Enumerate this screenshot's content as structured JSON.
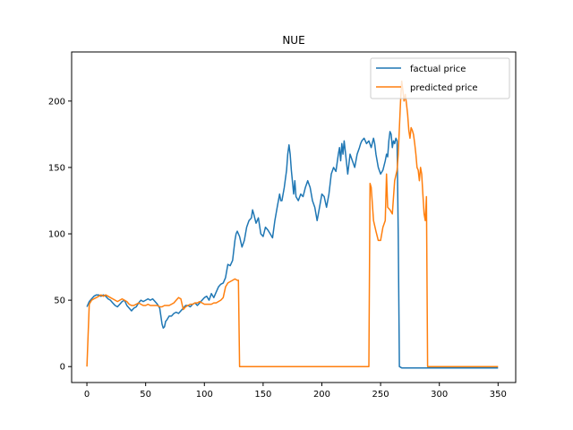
{
  "chart_data": {
    "type": "line",
    "title": "NUE",
    "xlabel": "",
    "ylabel": "",
    "xlim": [
      -13,
      365
    ],
    "ylim": [
      -12,
      237
    ],
    "xticks": [
      0,
      50,
      100,
      150,
      200,
      250,
      300,
      350
    ],
    "yticks": [
      0,
      50,
      100,
      150,
      200
    ],
    "grid": false,
    "legend_position": "top-right",
    "series": [
      {
        "name": "factual price",
        "color": "#1f77b4",
        "points": [
          [
            0,
            45
          ],
          [
            2,
            49
          ],
          [
            4,
            51
          ],
          [
            6,
            53
          ],
          [
            8,
            54
          ],
          [
            10,
            54
          ],
          [
            12,
            53
          ],
          [
            14,
            54
          ],
          [
            16,
            53
          ],
          [
            18,
            51
          ],
          [
            20,
            50
          ],
          [
            22,
            48
          ],
          [
            24,
            46
          ],
          [
            26,
            45
          ],
          [
            28,
            47
          ],
          [
            30,
            49
          ],
          [
            32,
            50
          ],
          [
            34,
            46
          ],
          [
            36,
            44
          ],
          [
            38,
            42
          ],
          [
            40,
            44
          ],
          [
            42,
            45
          ],
          [
            44,
            48
          ],
          [
            46,
            50
          ],
          [
            48,
            49
          ],
          [
            50,
            50
          ],
          [
            52,
            51
          ],
          [
            54,
            50
          ],
          [
            56,
            51
          ],
          [
            58,
            49
          ],
          [
            60,
            47
          ],
          [
            62,
            44
          ],
          [
            63,
            38
          ],
          [
            64,
            32
          ],
          [
            65,
            29
          ],
          [
            66,
            30
          ],
          [
            67,
            34
          ],
          [
            68,
            35
          ],
          [
            70,
            38
          ],
          [
            72,
            38
          ],
          [
            74,
            40
          ],
          [
            76,
            41
          ],
          [
            78,
            40
          ],
          [
            80,
            42
          ],
          [
            82,
            44
          ],
          [
            84,
            46
          ],
          [
            86,
            46
          ],
          [
            88,
            45
          ],
          [
            90,
            47
          ],
          [
            92,
            48
          ],
          [
            94,
            46
          ],
          [
            96,
            48
          ],
          [
            98,
            50
          ],
          [
            100,
            52
          ],
          [
            102,
            53
          ],
          [
            104,
            50
          ],
          [
            106,
            55
          ],
          [
            108,
            52
          ],
          [
            110,
            56
          ],
          [
            112,
            60
          ],
          [
            114,
            62
          ],
          [
            116,
            63
          ],
          [
            118,
            67
          ],
          [
            120,
            77
          ],
          [
            122,
            76
          ],
          [
            124,
            80
          ],
          [
            126,
            95
          ],
          [
            127,
            100
          ],
          [
            128,
            102
          ],
          [
            130,
            98
          ],
          [
            132,
            90
          ],
          [
            134,
            95
          ],
          [
            136,
            105
          ],
          [
            138,
            110
          ],
          [
            140,
            112
          ],
          [
            141,
            118
          ],
          [
            142,
            115
          ],
          [
            144,
            108
          ],
          [
            146,
            112
          ],
          [
            148,
            100
          ],
          [
            150,
            98
          ],
          [
            152,
            105
          ],
          [
            154,
            103
          ],
          [
            156,
            100
          ],
          [
            158,
            97
          ],
          [
            160,
            110
          ],
          [
            162,
            120
          ],
          [
            164,
            130
          ],
          [
            165,
            125
          ],
          [
            166,
            125
          ],
          [
            168,
            135
          ],
          [
            170,
            148
          ],
          [
            171,
            160
          ],
          [
            172,
            167
          ],
          [
            173,
            160
          ],
          [
            174,
            148
          ],
          [
            176,
            130
          ],
          [
            177,
            140
          ],
          [
            178,
            128
          ],
          [
            180,
            125
          ],
          [
            182,
            130
          ],
          [
            184,
            128
          ],
          [
            186,
            135
          ],
          [
            188,
            140
          ],
          [
            190,
            135
          ],
          [
            192,
            125
          ],
          [
            194,
            120
          ],
          [
            196,
            110
          ],
          [
            198,
            120
          ],
          [
            200,
            130
          ],
          [
            202,
            128
          ],
          [
            204,
            120
          ],
          [
            206,
            130
          ],
          [
            208,
            145
          ],
          [
            210,
            150
          ],
          [
            212,
            147
          ],
          [
            214,
            160
          ],
          [
            215,
            165
          ],
          [
            216,
            155
          ],
          [
            217,
            168
          ],
          [
            218,
            160
          ],
          [
            219,
            170
          ],
          [
            220,
            162
          ],
          [
            222,
            145
          ],
          [
            224,
            160
          ],
          [
            226,
            155
          ],
          [
            228,
            150
          ],
          [
            230,
            160
          ],
          [
            232,
            165
          ],
          [
            233,
            168
          ],
          [
            234,
            170
          ],
          [
            236,
            172
          ],
          [
            238,
            168
          ],
          [
            240,
            170
          ],
          [
            242,
            165
          ],
          [
            244,
            172
          ],
          [
            245,
            168
          ],
          [
            246,
            160
          ],
          [
            248,
            150
          ],
          [
            250,
            145
          ],
          [
            252,
            148
          ],
          [
            254,
            155
          ],
          [
            255,
            160
          ],
          [
            256,
            158
          ],
          [
            257,
            170
          ],
          [
            258,
            177
          ],
          [
            259,
            175
          ],
          [
            260,
            165
          ],
          [
            261,
            170
          ],
          [
            262,
            168
          ],
          [
            263,
            172
          ],
          [
            264,
            170
          ],
          [
            265,
            100
          ],
          [
            266,
            0
          ],
          [
            268,
            -1
          ],
          [
            300,
            -1
          ],
          [
            330,
            -1
          ],
          [
            350,
            -1
          ]
        ]
      },
      {
        "name": "predicted price",
        "color": "#ff7f0e",
        "points": [
          [
            0,
            0
          ],
          [
            2,
            47
          ],
          [
            4,
            50
          ],
          [
            6,
            51
          ],
          [
            8,
            52
          ],
          [
            10,
            53
          ],
          [
            12,
            54
          ],
          [
            14,
            53
          ],
          [
            16,
            54
          ],
          [
            18,
            53
          ],
          [
            20,
            52
          ],
          [
            22,
            51
          ],
          [
            24,
            50
          ],
          [
            26,
            49
          ],
          [
            28,
            50
          ],
          [
            30,
            51
          ],
          [
            32,
            50
          ],
          [
            34,
            49
          ],
          [
            36,
            47
          ],
          [
            38,
            46
          ],
          [
            40,
            46
          ],
          [
            42,
            47
          ],
          [
            44,
            48
          ],
          [
            46,
            47
          ],
          [
            48,
            46
          ],
          [
            50,
            46
          ],
          [
            52,
            47
          ],
          [
            54,
            46
          ],
          [
            56,
            46
          ],
          [
            58,
            46
          ],
          [
            60,
            46
          ],
          [
            62,
            45
          ],
          [
            64,
            45
          ],
          [
            66,
            46
          ],
          [
            68,
            46
          ],
          [
            70,
            46
          ],
          [
            72,
            47
          ],
          [
            74,
            48
          ],
          [
            76,
            50
          ],
          [
            78,
            52
          ],
          [
            80,
            51
          ],
          [
            82,
            43
          ],
          [
            84,
            45
          ],
          [
            86,
            46
          ],
          [
            88,
            47
          ],
          [
            90,
            47
          ],
          [
            92,
            48
          ],
          [
            94,
            48
          ],
          [
            96,
            49
          ],
          [
            98,
            48
          ],
          [
            100,
            47
          ],
          [
            102,
            47
          ],
          [
            104,
            47
          ],
          [
            106,
            47
          ],
          [
            108,
            48
          ],
          [
            110,
            48
          ],
          [
            112,
            49
          ],
          [
            114,
            50
          ],
          [
            116,
            52
          ],
          [
            118,
            60
          ],
          [
            120,
            63
          ],
          [
            122,
            64
          ],
          [
            124,
            65
          ],
          [
            126,
            66
          ],
          [
            128,
            65
          ],
          [
            129,
            65
          ],
          [
            130,
            0
          ],
          [
            132,
            0
          ],
          [
            200,
            0
          ],
          [
            240,
            0
          ],
          [
            241,
            138
          ],
          [
            242,
            135
          ],
          [
            244,
            110
          ],
          [
            246,
            102
          ],
          [
            248,
            95
          ],
          [
            250,
            95
          ],
          [
            252,
            105
          ],
          [
            254,
            110
          ],
          [
            255,
            145
          ],
          [
            256,
            120
          ],
          [
            258,
            118
          ],
          [
            260,
            115
          ],
          [
            262,
            140
          ],
          [
            264,
            148
          ],
          [
            265,
            160
          ],
          [
            266,
            180
          ],
          [
            267,
            200
          ],
          [
            268,
            215
          ],
          [
            269,
            208
          ],
          [
            270,
            200
          ],
          [
            271,
            205
          ],
          [
            272,
            198
          ],
          [
            273,
            190
          ],
          [
            274,
            178
          ],
          [
            275,
            172
          ],
          [
            276,
            180
          ],
          [
            277,
            178
          ],
          [
            278,
            175
          ],
          [
            279,
            168
          ],
          [
            280,
            160
          ],
          [
            281,
            150
          ],
          [
            282,
            148
          ],
          [
            283,
            140
          ],
          [
            284,
            150
          ],
          [
            285,
            145
          ],
          [
            286,
            130
          ],
          [
            287,
            115
          ],
          [
            288,
            110
          ],
          [
            289,
            128
          ],
          [
            290,
            0
          ],
          [
            300,
            0
          ],
          [
            350,
            0
          ]
        ]
      }
    ]
  }
}
